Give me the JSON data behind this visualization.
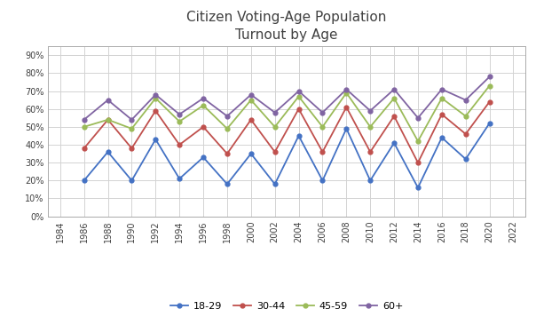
{
  "title": "Citizen Voting-Age Population\nTurnout by Age",
  "years": [
    1984,
    1986,
    1988,
    1990,
    1992,
    1994,
    1996,
    1998,
    2000,
    2002,
    2004,
    2006,
    2008,
    2010,
    2012,
    2014,
    2016,
    2018,
    2020,
    2022
  ],
  "series": {
    "18-29": [
      null,
      0.2,
      0.36,
      0.2,
      0.43,
      0.21,
      0.33,
      0.18,
      0.35,
      0.18,
      0.45,
      0.2,
      0.49,
      0.2,
      0.41,
      0.16,
      0.44,
      0.32,
      0.52,
      null
    ],
    "30-44": [
      null,
      0.38,
      0.54,
      0.38,
      0.59,
      0.4,
      0.5,
      0.35,
      0.54,
      0.36,
      0.6,
      0.36,
      0.61,
      0.36,
      0.56,
      0.3,
      0.57,
      0.46,
      0.64,
      null
    ],
    "45-59": [
      null,
      0.5,
      0.54,
      0.49,
      0.66,
      0.53,
      0.62,
      0.49,
      0.65,
      0.5,
      0.67,
      0.5,
      0.69,
      0.5,
      0.66,
      0.42,
      0.66,
      0.56,
      0.73,
      null
    ],
    "60+": [
      null,
      0.54,
      0.65,
      0.54,
      0.68,
      0.57,
      0.66,
      0.56,
      0.68,
      0.58,
      0.7,
      0.58,
      0.71,
      0.59,
      0.71,
      0.55,
      0.71,
      0.65,
      0.78,
      null
    ]
  },
  "colors": {
    "18-29": "#4472C4",
    "30-44": "#C0504D",
    "45-59": "#9BBB59",
    "60+": "#8064A2"
  },
  "series_order": [
    "18-29",
    "30-44",
    "45-59",
    "60+"
  ],
  "xlim": [
    1983,
    2023
  ],
  "xticks": [
    1984,
    1986,
    1988,
    1990,
    1992,
    1994,
    1996,
    1998,
    2000,
    2002,
    2004,
    2006,
    2008,
    2010,
    2012,
    2014,
    2016,
    2018,
    2020,
    2022
  ],
  "ylim": [
    0.0,
    0.95
  ],
  "yticks": [
    0.0,
    0.1,
    0.2,
    0.3,
    0.4,
    0.5,
    0.6,
    0.7,
    0.8,
    0.9
  ],
  "bg_color": "#FFFFFF",
  "grid_color": "#D3D3D3",
  "title_color": "#404040",
  "title_fontsize": 11,
  "tick_fontsize": 7,
  "legend_fontsize": 8,
  "marker_size": 3.5,
  "line_width": 1.3
}
